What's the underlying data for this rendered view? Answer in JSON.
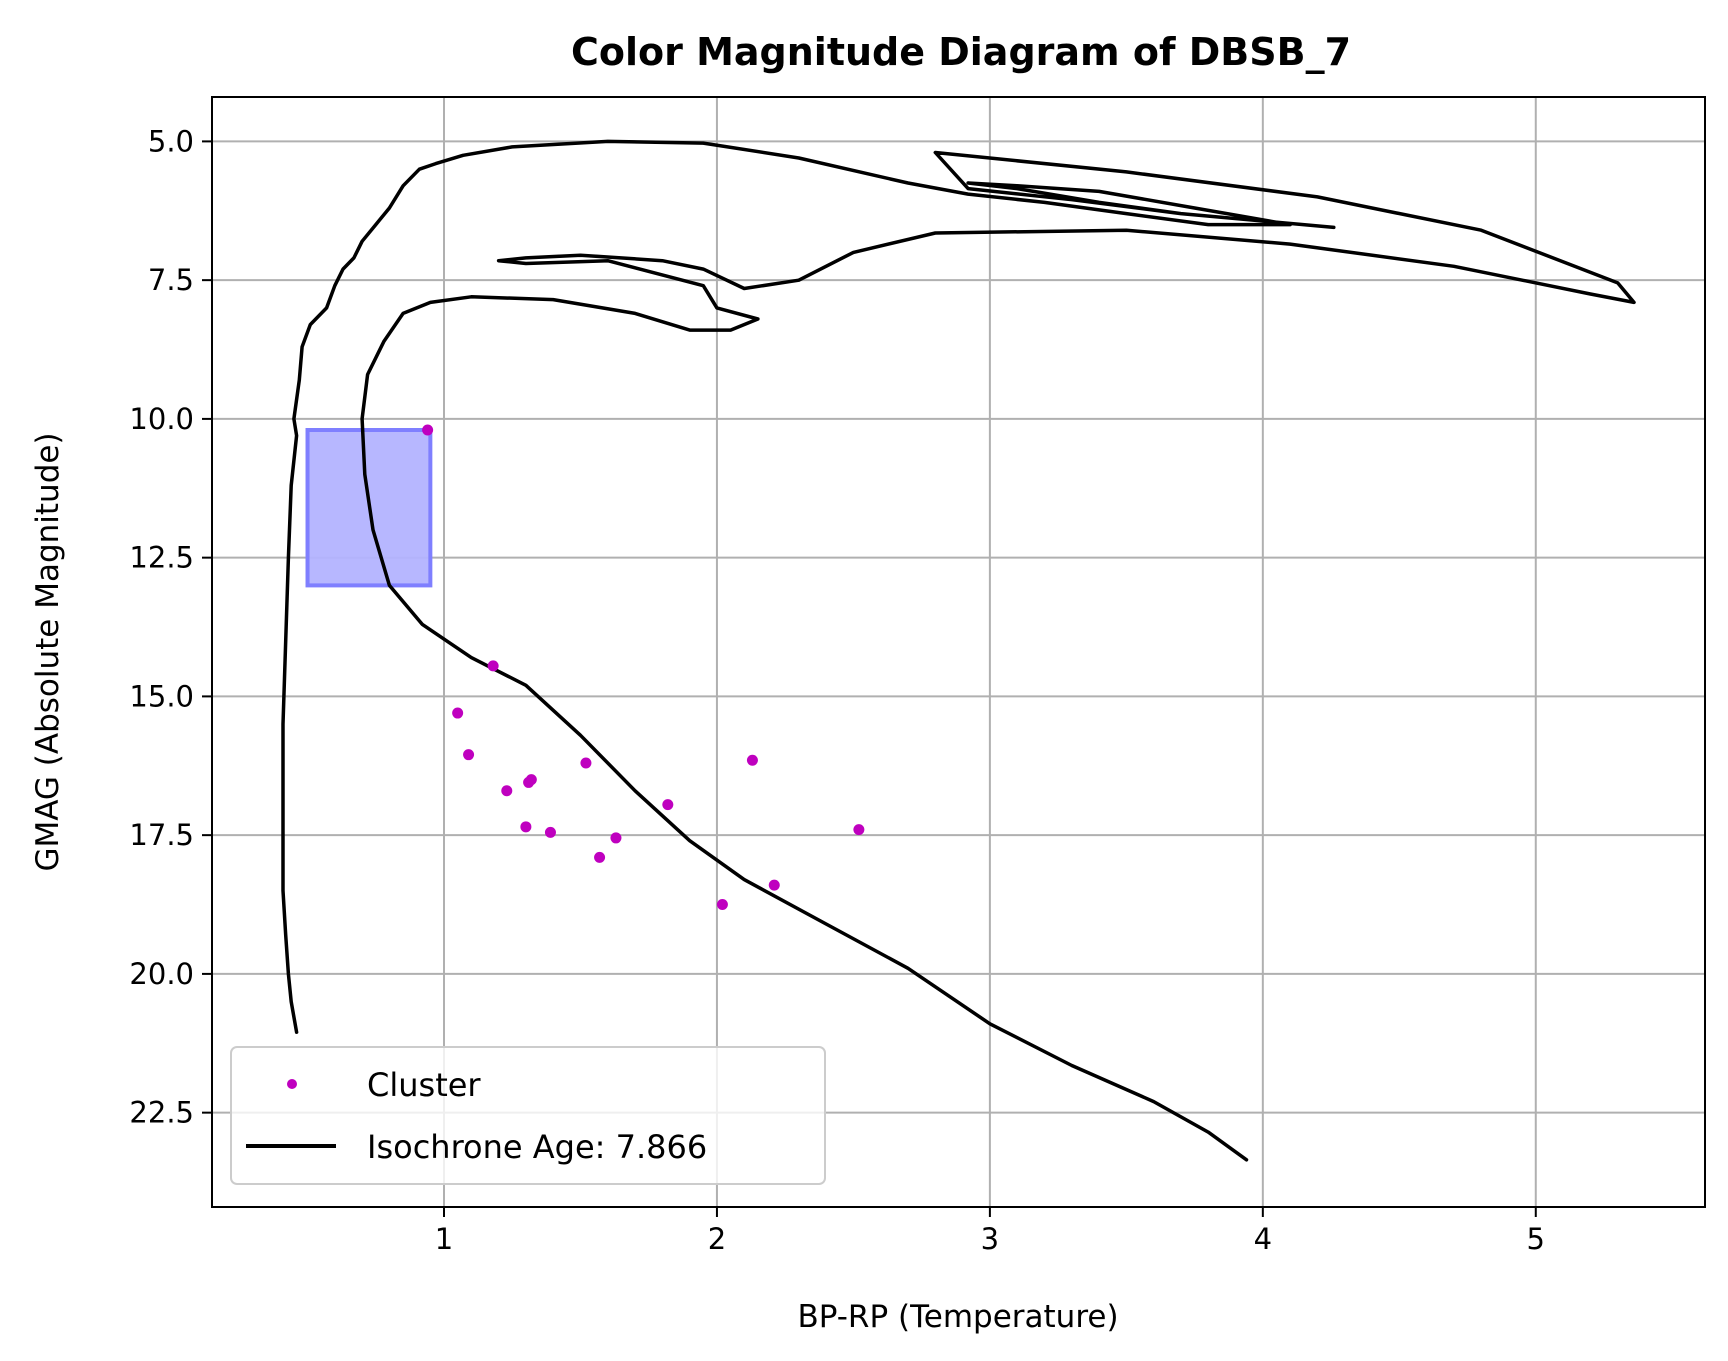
{
  "colors": {
    "cluster": "#bf00bf",
    "isochrone": "#000000",
    "box_fill": "#b3b3ff",
    "box_edge": "#7f7fff",
    "grid": "#b0b0b0"
  },
  "chart_data": {
    "type": "scatter",
    "title": "Color Magnitude Diagram of DBSB_7",
    "xlabel": "BP-RP (Temperature)",
    "ylabel": "GMAG (Absolute Magnitude)",
    "xlim": [
      0.15,
      5.62
    ],
    "ylim": [
      24.2,
      4.2
    ],
    "y_inverted": true,
    "grid": true,
    "legend_placement": "lower-left",
    "x_ticks": [
      {
        "value": 1,
        "label": "1"
      },
      {
        "value": 2,
        "label": "2"
      },
      {
        "value": 3,
        "label": "3"
      },
      {
        "value": 4,
        "label": "4"
      },
      {
        "value": 5,
        "label": "5"
      }
    ],
    "y_ticks": [
      {
        "value": 5.0,
        "label": "5.0"
      },
      {
        "value": 7.5,
        "label": "7.5"
      },
      {
        "value": 10.0,
        "label": "10.0"
      },
      {
        "value": 12.5,
        "label": "12.5"
      },
      {
        "value": 15.0,
        "label": "15.0"
      },
      {
        "value": 17.5,
        "label": "17.5"
      },
      {
        "value": 20.0,
        "label": "20.0"
      },
      {
        "value": 22.5,
        "label": "22.5"
      }
    ],
    "selection_box": {
      "x": [
        0.5,
        0.95
      ],
      "y": [
        10.2,
        13.0
      ]
    },
    "series": [
      {
        "name": "Cluster",
        "kind": "scatter",
        "points": [
          [
            0.94,
            10.2
          ],
          [
            1.18,
            14.45
          ],
          [
            1.05,
            15.3
          ],
          [
            1.09,
            16.05
          ],
          [
            1.52,
            16.2
          ],
          [
            2.13,
            16.15
          ],
          [
            1.23,
            16.7
          ],
          [
            1.32,
            16.5
          ],
          [
            1.31,
            16.55
          ],
          [
            1.82,
            16.95
          ],
          [
            1.3,
            17.35
          ],
          [
            1.39,
            17.45
          ],
          [
            1.63,
            17.55
          ],
          [
            2.52,
            17.4
          ],
          [
            1.57,
            17.9
          ],
          [
            2.21,
            18.4
          ],
          [
            2.02,
            18.75
          ]
        ]
      },
      {
        "name": "Isochrone Age: 7.866",
        "kind": "line",
        "points": [
          [
            0.46,
            21.05
          ],
          [
            0.44,
            20.5
          ],
          [
            0.43,
            20.0
          ],
          [
            0.42,
            19.3
          ],
          [
            0.41,
            18.5
          ],
          [
            0.41,
            17.0
          ],
          [
            0.41,
            15.5
          ],
          [
            0.42,
            14.0
          ],
          [
            0.43,
            12.5
          ],
          [
            0.44,
            11.2
          ],
          [
            0.46,
            10.3
          ],
          [
            0.45,
            10.0
          ],
          [
            0.47,
            9.3
          ],
          [
            0.48,
            8.7
          ],
          [
            0.51,
            8.3
          ],
          [
            0.57,
            8.0
          ],
          [
            0.6,
            7.6
          ],
          [
            0.63,
            7.3
          ],
          [
            0.67,
            7.1
          ],
          [
            0.7,
            6.8
          ],
          [
            0.75,
            6.5
          ],
          [
            0.8,
            6.2
          ],
          [
            0.85,
            5.8
          ],
          [
            0.91,
            5.5
          ],
          [
            0.97,
            5.4
          ],
          [
            1.07,
            5.25
          ],
          [
            1.25,
            5.1
          ],
          [
            1.6,
            5.0
          ],
          [
            1.95,
            5.03
          ],
          [
            2.3,
            5.3
          ],
          [
            2.7,
            5.75
          ],
          [
            2.92,
            5.95
          ],
          [
            3.2,
            6.1
          ],
          [
            3.5,
            6.3
          ],
          [
            3.8,
            6.5
          ],
          [
            4.1,
            6.5
          ],
          [
            3.75,
            6.2
          ],
          [
            3.4,
            5.9
          ],
          [
            3.1,
            5.8
          ],
          [
            2.92,
            5.75
          ],
          [
            3.1,
            5.85
          ],
          [
            3.4,
            6.1
          ],
          [
            3.7,
            6.3
          ],
          [
            4.26,
            6.55
          ],
          [
            3.7,
            6.3
          ],
          [
            3.3,
            6.05
          ],
          [
            2.92,
            5.85
          ],
          [
            2.8,
            5.2
          ],
          [
            3.5,
            5.55
          ],
          [
            4.2,
            6.0
          ],
          [
            4.8,
            6.6
          ],
          [
            5.3,
            7.55
          ],
          [
            5.36,
            7.9
          ],
          [
            5.2,
            7.75
          ],
          [
            4.7,
            7.25
          ],
          [
            4.1,
            6.85
          ],
          [
            3.5,
            6.6
          ],
          [
            2.8,
            6.65
          ],
          [
            2.5,
            7.0
          ],
          [
            2.3,
            7.5
          ],
          [
            2.1,
            7.65
          ],
          [
            1.95,
            7.3
          ],
          [
            1.8,
            7.15
          ],
          [
            1.5,
            7.05
          ],
          [
            1.3,
            7.1
          ],
          [
            1.2,
            7.15
          ],
          [
            1.3,
            7.2
          ],
          [
            1.6,
            7.15
          ],
          [
            1.95,
            7.6
          ],
          [
            2.0,
            8.0
          ],
          [
            2.15,
            8.2
          ],
          [
            2.05,
            8.4
          ],
          [
            1.9,
            8.4
          ],
          [
            1.7,
            8.1
          ],
          [
            1.4,
            7.85
          ],
          [
            1.1,
            7.8
          ],
          [
            0.95,
            7.9
          ],
          [
            0.85,
            8.1
          ],
          [
            0.78,
            8.6
          ],
          [
            0.72,
            9.2
          ],
          [
            0.7,
            10.0
          ],
          [
            0.71,
            11.0
          ],
          [
            0.74,
            12.0
          ],
          [
            0.8,
            13.0
          ],
          [
            0.92,
            13.7
          ],
          [
            1.1,
            14.3
          ],
          [
            1.3,
            14.8
          ],
          [
            1.5,
            15.7
          ],
          [
            1.7,
            16.7
          ],
          [
            1.9,
            17.6
          ],
          [
            2.1,
            18.3
          ],
          [
            2.4,
            19.1
          ],
          [
            2.7,
            19.9
          ],
          [
            3.0,
            20.9
          ],
          [
            3.3,
            21.65
          ],
          [
            3.6,
            22.3
          ],
          [
            3.8,
            22.85
          ],
          [
            3.94,
            23.35
          ]
        ]
      }
    ]
  }
}
